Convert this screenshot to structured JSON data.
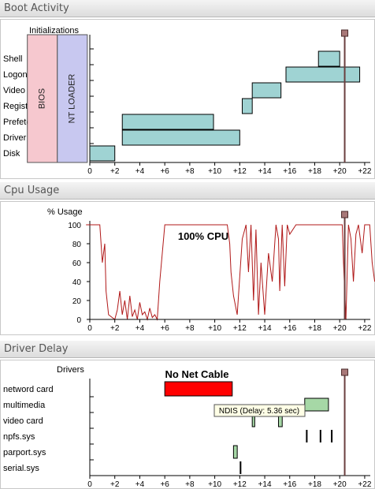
{
  "panels": {
    "boot_title": "Boot Activity",
    "cpu_title": "Cpu Usage",
    "driver_title": "Driver Delay"
  },
  "colors": {
    "bar_fill": "#9fd3d3",
    "bios_fill": "#f6c8cf",
    "ntloader_fill": "#c8c8f0",
    "cpu_line": "#b01818",
    "marker": "#6b3f3f",
    "red_bar": "#ff0000",
    "green_bar": "#a6d8a6"
  },
  "chart_data": [
    {
      "type": "bar",
      "title": "Boot Activity",
      "ylabel": "Initializations",
      "x_ticks": [
        "0",
        "+2",
        "+4",
        "+6",
        "+8",
        "+10",
        "+12",
        "+14",
        "+16",
        "+18",
        "+20",
        "+22"
      ],
      "xlim": [
        -5,
        23
      ],
      "phases": [
        {
          "label": "BIOS",
          "start": -5,
          "end": -2.6
        },
        {
          "label": "NT LOADER",
          "start": -2.6,
          "end": -0.2
        }
      ],
      "categories": [
        "Shell",
        "Logon+Serv",
        "Video",
        "Registry+Pa",
        "Prefetching",
        "Driver",
        "Disk"
      ],
      "bars": [
        {
          "category": "Shell",
          "start": 18.3,
          "end": 20.0
        },
        {
          "category": "Logon+Serv",
          "start": 15.7,
          "end": 21.6
        },
        {
          "category": "Video",
          "start": 13.0,
          "end": 15.3
        },
        {
          "category": "Registry+Pa",
          "start": 12.2,
          "end": 13.0
        },
        {
          "category": "Prefetching",
          "start": 2.6,
          "end": 9.9
        },
        {
          "category": "Driver",
          "start": 2.6,
          "end": 12.0
        },
        {
          "category": "Disk",
          "start": 0.0,
          "end": 2.0
        }
      ],
      "marker_x": 20.4
    },
    {
      "type": "line",
      "title": "Cpu Usage",
      "ylabel": "% Usage",
      "annotation": "100% CPU",
      "x_ticks": [
        "0",
        "+2",
        "+4",
        "+6",
        "+8",
        "+10",
        "+12",
        "+14",
        "+16",
        "+18",
        "+20",
        "+22"
      ],
      "y_ticks": [
        "0",
        "20",
        "40",
        "60",
        "80",
        "100"
      ],
      "xlim": [
        -0.3,
        23
      ],
      "ylim": [
        0,
        100
      ],
      "series": [
        {
          "x": [
            -0.3,
            0.2,
            0.8,
            1.0,
            1.2,
            1.3,
            1.5,
            1.8,
            2.0,
            2.2,
            2.4,
            2.6,
            2.8,
            3.0,
            3.2,
            3.4,
            3.6,
            3.8,
            4.0,
            4.2,
            4.4,
            4.6,
            4.8,
            5.0,
            5.2,
            5.4,
            5.6,
            5.8,
            6.0,
            6.3,
            11.0,
            11.2,
            11.3,
            11.5,
            11.8,
            12.0,
            12.2,
            12.5,
            12.7,
            12.9,
            13.1,
            13.3,
            13.5,
            13.7,
            14.0,
            14.3,
            14.6,
            14.9,
            15.1,
            15.2,
            15.4,
            15.6,
            15.8,
            16.0,
            16.5,
            17.0,
            20.2,
            20.3,
            20.5,
            20.7,
            20.9,
            21.1,
            21.3,
            21.5,
            21.8,
            22.0,
            22.2,
            22.4,
            22.6,
            22.8
          ],
          "y": [
            100,
            100,
            100,
            60,
            80,
            30,
            5,
            2,
            0,
            10,
            30,
            5,
            20,
            0,
            25,
            3,
            10,
            0,
            18,
            5,
            8,
            0,
            12,
            2,
            5,
            0,
            40,
            70,
            100,
            100,
            100,
            80,
            50,
            25,
            5,
            45,
            85,
            100,
            50,
            100,
            20,
            95,
            5,
            60,
            5,
            70,
            40,
            100,
            85,
            30,
            100,
            35,
            100,
            90,
            100,
            100,
            100,
            60,
            0,
            100,
            85,
            40,
            90,
            100,
            70,
            100,
            100,
            100,
            60,
            40
          ]
        }
      ],
      "marker_x": 20.4
    },
    {
      "type": "bar",
      "title": "Driver Delay",
      "ylabel": "Drivers",
      "annotation": "No Net Cable",
      "tooltip": "NDIS (Delay: 5.36 sec)",
      "x_ticks": [
        "0",
        "+2",
        "+4",
        "+6",
        "+8",
        "+10",
        "+12",
        "+14",
        "+16",
        "+18",
        "+20",
        "+22"
      ],
      "xlim": [
        -0.3,
        23
      ],
      "categories": [
        "netword card",
        "multimedia",
        "video card",
        "npfs.sys",
        "parport.sys",
        "serial.sys"
      ],
      "bars": [
        {
          "category": "netword card",
          "start": 6.0,
          "end": 11.4,
          "color": "red"
        },
        {
          "category": "multimedia",
          "start": 17.2,
          "end": 19.1,
          "color": "green"
        },
        {
          "category": "video card",
          "start": 13.0,
          "end": 13.2,
          "color": "green"
        },
        {
          "category": "video card",
          "start": 15.1,
          "end": 15.4,
          "color": "green"
        },
        {
          "category": "npfs.sys",
          "start": 17.3,
          "end": 17.4,
          "color": "black"
        },
        {
          "category": "npfs.sys",
          "start": 18.4,
          "end": 18.5,
          "color": "black"
        },
        {
          "category": "npfs.sys",
          "start": 19.3,
          "end": 19.4,
          "color": "black"
        },
        {
          "category": "parport.sys",
          "start": 11.5,
          "end": 11.8,
          "color": "green"
        },
        {
          "category": "serial.sys",
          "start": 12.0,
          "end": 12.1,
          "color": "black"
        }
      ],
      "marker_x": 20.4
    }
  ]
}
